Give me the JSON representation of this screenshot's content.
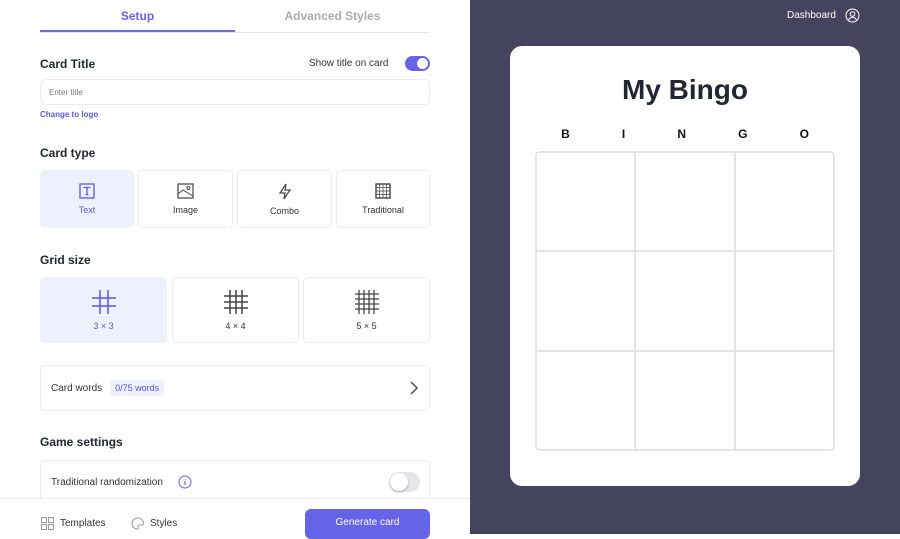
{
  "tabs": [
    {
      "label": "Setup",
      "active": true
    },
    {
      "label": "Advanced Styles",
      "active": false
    }
  ],
  "card_title": {
    "heading": "Card Title",
    "show_title_label": "Show title on card",
    "show_title_on": true,
    "placeholder": "Enter title",
    "value": "",
    "change_logo": "Change to logo"
  },
  "card_type": {
    "heading": "Card type",
    "options": [
      {
        "label": "Text",
        "icon": "text-icon",
        "selected": true
      },
      {
        "label": "Image",
        "icon": "image-icon"
      },
      {
        "label": "Combo",
        "icon": "lightning-icon"
      },
      {
        "label": "Traditional",
        "icon": "grid-icon"
      }
    ]
  },
  "grid_size": {
    "heading": "Grid size",
    "options": [
      {
        "label": "3 × 3",
        "selected": true
      },
      {
        "label": "4 × 4"
      },
      {
        "label": "5 × 5"
      }
    ]
  },
  "card_words": {
    "label": "Card words",
    "badge": "0/75 words"
  },
  "game_settings": {
    "heading": "Game settings",
    "traditional_randomization": "Traditional randomization",
    "randomization_on": false
  },
  "footer": {
    "templates": "Templates",
    "styles": "Styles",
    "generate": "Generate card"
  },
  "header": {
    "dashboard": "Dashboard"
  },
  "preview": {
    "title": "My Bingo",
    "letters": [
      "B",
      "I",
      "N",
      "G",
      "O"
    ]
  },
  "colors": {
    "accent": "#6563e8",
    "preview_bg": "#45445f"
  }
}
